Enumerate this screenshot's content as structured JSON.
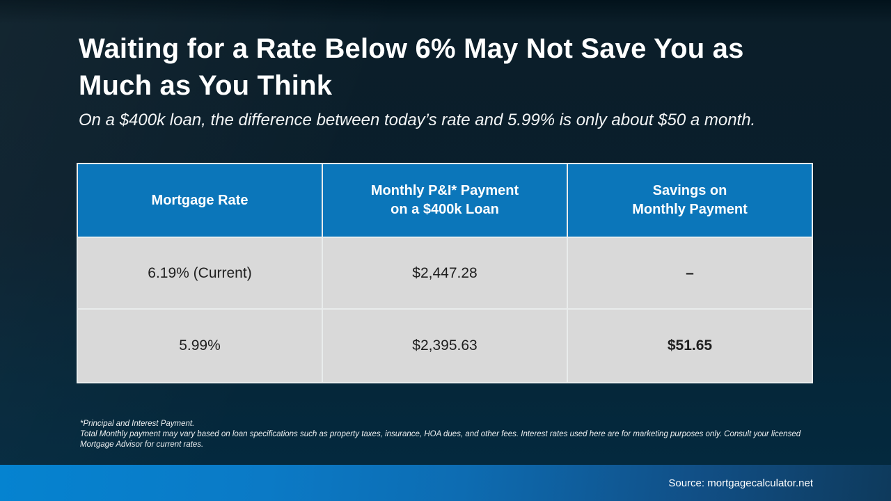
{
  "slide": {
    "title": "Waiting for a Rate Below 6% May Not Save You as Much as You Think",
    "subtitle": "On a $400k loan, the difference between today’s rate and 5.99% is only about $50 a month.",
    "footnote_line1": "*Principal and Interest Payment.",
    "footnote_line2": "Total Monthly payment may vary based on loan specifications such as property taxes, insurance, HOA dues, and other fees. Interest rates used here are for marketing purposes only. Consult your licensed Mortgage Advisor for current rates.",
    "source": "Source: mortgagecalculator.net"
  },
  "colors": {
    "header_blue": "#0b76ba",
    "row_gray": "#d9d9d9",
    "bar_blue_left": "#0583d0",
    "bar_blue_right": "#0e3a5c",
    "background_top": "#0b1e29",
    "background_bottom": "#032a40"
  },
  "table": {
    "columns": [
      {
        "label": "Mortgage Rate"
      },
      {
        "label_line1": "Monthly P&I* Payment",
        "label_line2": "on a $400k Loan"
      },
      {
        "label_line1": "Savings on",
        "label_line2": "Monthly Payment"
      }
    ],
    "rows": [
      {
        "rate": "6.19% (Current)",
        "payment": "$2,447.28",
        "savings": "–"
      },
      {
        "rate": "5.99%",
        "payment": "$2,395.63",
        "savings": "$51.65"
      }
    ]
  }
}
